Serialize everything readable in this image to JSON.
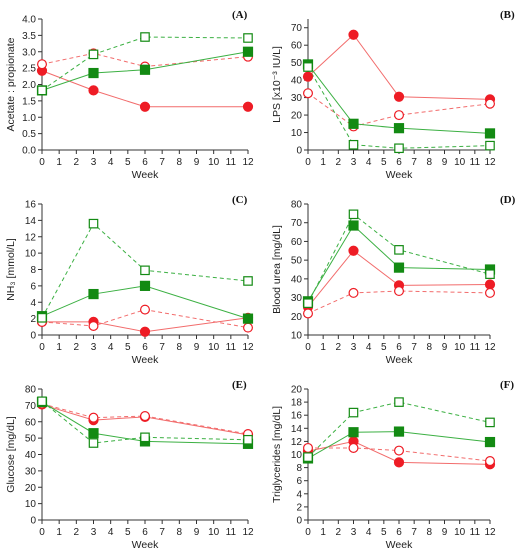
{
  "colors": {
    "red": "#ee1c25",
    "red_line": "#f26c6c",
    "green": "#138a13",
    "green_line": "#3cb043",
    "axis": "#333333"
  },
  "chart_data": [
    {
      "panel": "(A)",
      "type": "line",
      "xlabel": "Week",
      "ylabel": "Acetate : propionate",
      "xlim": [
        0,
        12
      ],
      "ylim": [
        0,
        4
      ],
      "xticks": [
        0,
        1,
        2,
        3,
        4,
        5,
        6,
        7,
        8,
        9,
        10,
        11,
        12
      ],
      "yticks": [
        "0.0",
        "0.5",
        "1.0",
        "1.5",
        "2.0",
        "2.5",
        "3.0",
        "3.5",
        "4.0"
      ],
      "x": [
        0,
        3,
        6,
        12
      ],
      "series": [
        {
          "marker": "filled-circle",
          "color": "red",
          "dash": false,
          "values": [
            2.42,
            1.82,
            1.32,
            1.32
          ]
        },
        {
          "marker": "open-circle",
          "color": "red",
          "dash": true,
          "values": [
            2.62,
            2.95,
            2.55,
            2.85
          ]
        },
        {
          "marker": "filled-square",
          "color": "green",
          "dash": false,
          "values": [
            1.82,
            2.35,
            2.45,
            3.0
          ]
        },
        {
          "marker": "open-square",
          "color": "green",
          "dash": true,
          "values": [
            1.82,
            2.92,
            3.45,
            3.42
          ]
        }
      ]
    },
    {
      "panel": "(B)",
      "type": "line",
      "xlabel": "Week",
      "ylabel": "LPS [x10⁻³ IU/L]",
      "xlim": [
        0,
        12
      ],
      "ylim": [
        0,
        75
      ],
      "xticks": [
        0,
        1,
        2,
        3,
        4,
        5,
        6,
        7,
        8,
        9,
        10,
        11,
        12
      ],
      "yticks": [
        "0",
        "10",
        "20",
        "30",
        "40",
        "50",
        "60",
        "70"
      ],
      "x": [
        0,
        3,
        6,
        12
      ],
      "series": [
        {
          "marker": "filled-circle",
          "color": "red",
          "dash": false,
          "values": [
            42,
            66,
            30.5,
            29
          ]
        },
        {
          "marker": "open-circle",
          "color": "red",
          "dash": true,
          "values": [
            32.5,
            13.5,
            20,
            26.5
          ]
        },
        {
          "marker": "filled-square",
          "color": "green",
          "dash": false,
          "values": [
            49,
            15,
            12.5,
            9.5
          ]
        },
        {
          "marker": "open-square",
          "color": "green",
          "dash": true,
          "values": [
            47.5,
            3,
            1,
            2.5
          ]
        }
      ]
    },
    {
      "panel": "(C)",
      "type": "line",
      "xlabel": "Week",
      "ylabel": "NH₃ [mmol/L]",
      "xlim": [
        0,
        12
      ],
      "ylim": [
        0,
        16
      ],
      "xticks": [
        0,
        1,
        2,
        3,
        4,
        5,
        6,
        7,
        8,
        9,
        10,
        11,
        12
      ],
      "yticks": [
        "0",
        "2",
        "4",
        "6",
        "8",
        "10",
        "12",
        "14",
        "16"
      ],
      "x": [
        0,
        3,
        6,
        12
      ],
      "series": [
        {
          "marker": "filled-circle",
          "color": "red",
          "dash": false,
          "values": [
            1.6,
            1.6,
            0.4,
            2.1
          ]
        },
        {
          "marker": "open-circle",
          "color": "red",
          "dash": true,
          "values": [
            1.6,
            1.1,
            3.1,
            0.9
          ]
        },
        {
          "marker": "filled-square",
          "color": "green",
          "dash": false,
          "values": [
            2.3,
            5.0,
            6.0,
            2.0
          ]
        },
        {
          "marker": "open-square",
          "color": "green",
          "dash": true,
          "values": [
            2.1,
            13.6,
            7.9,
            6.6
          ]
        }
      ]
    },
    {
      "panel": "(D)",
      "type": "line",
      "xlabel": "Week",
      "ylabel": "Blood urea [mg/dL]",
      "xlim": [
        0,
        12
      ],
      "ylim": [
        10,
        80
      ],
      "xticks": [
        0,
        1,
        2,
        3,
        4,
        5,
        6,
        7,
        8,
        9,
        10,
        11,
        12
      ],
      "yticks": [
        "10",
        "20",
        "30",
        "40",
        "50",
        "60",
        "70",
        "80"
      ],
      "x": [
        0,
        3,
        6,
        12
      ],
      "series": [
        {
          "marker": "filled-circle",
          "color": "red",
          "dash": false,
          "values": [
            25,
            55,
            36.5,
            37
          ]
        },
        {
          "marker": "open-circle",
          "color": "red",
          "dash": true,
          "values": [
            21.5,
            32.5,
            33.5,
            32.5
          ]
        },
        {
          "marker": "filled-square",
          "color": "green",
          "dash": false,
          "values": [
            28,
            68.5,
            46,
            45
          ]
        },
        {
          "marker": "open-square",
          "color": "green",
          "dash": true,
          "values": [
            27,
            74.5,
            55.5,
            42.5
          ]
        }
      ]
    },
    {
      "panel": "(E)",
      "type": "line",
      "xlabel": "Week",
      "ylabel": "Glucose [mg/dL]",
      "xlim": [
        0,
        12
      ],
      "ylim": [
        0,
        80
      ],
      "xticks": [
        0,
        1,
        2,
        3,
        4,
        5,
        6,
        7,
        8,
        9,
        10,
        11,
        12
      ],
      "yticks": [
        "0",
        "10",
        "20",
        "30",
        "40",
        "50",
        "60",
        "70",
        "80"
      ],
      "x": [
        0,
        3,
        6,
        12
      ],
      "series": [
        {
          "marker": "filled-circle",
          "color": "red",
          "dash": false,
          "values": [
            70.5,
            61,
            63,
            52
          ]
        },
        {
          "marker": "open-circle",
          "color": "red",
          "dash": true,
          "values": [
            71,
            62.5,
            63.5,
            52.5
          ]
        },
        {
          "marker": "filled-square",
          "color": "green",
          "dash": false,
          "values": [
            72,
            53,
            48,
            46.5
          ]
        },
        {
          "marker": "open-square",
          "color": "green",
          "dash": true,
          "values": [
            72.5,
            47,
            50.5,
            49
          ]
        }
      ]
    },
    {
      "panel": "(F)",
      "type": "line",
      "xlabel": "Week",
      "ylabel": "Triglycerides [mg/dL]",
      "xlim": [
        0,
        12
      ],
      "ylim": [
        0,
        20
      ],
      "xticks": [
        0,
        1,
        2,
        3,
        4,
        5,
        6,
        7,
        8,
        9,
        10,
        11,
        12
      ],
      "yticks": [
        "0",
        "2",
        "4",
        "6",
        "8",
        "10",
        "12",
        "14",
        "16",
        "18",
        "20"
      ],
      "x": [
        0,
        3,
        6,
        12
      ],
      "series": [
        {
          "marker": "filled-circle",
          "color": "red",
          "dash": false,
          "values": [
            10.5,
            12,
            8.8,
            8.5
          ]
        },
        {
          "marker": "open-circle",
          "color": "red",
          "dash": true,
          "values": [
            11,
            11,
            10.6,
            9
          ]
        },
        {
          "marker": "filled-square",
          "color": "green",
          "dash": false,
          "values": [
            9.4,
            13.4,
            13.5,
            11.9
          ]
        },
        {
          "marker": "open-square",
          "color": "green",
          "dash": true,
          "values": [
            9.6,
            16.4,
            18,
            14.9
          ]
        }
      ]
    }
  ]
}
